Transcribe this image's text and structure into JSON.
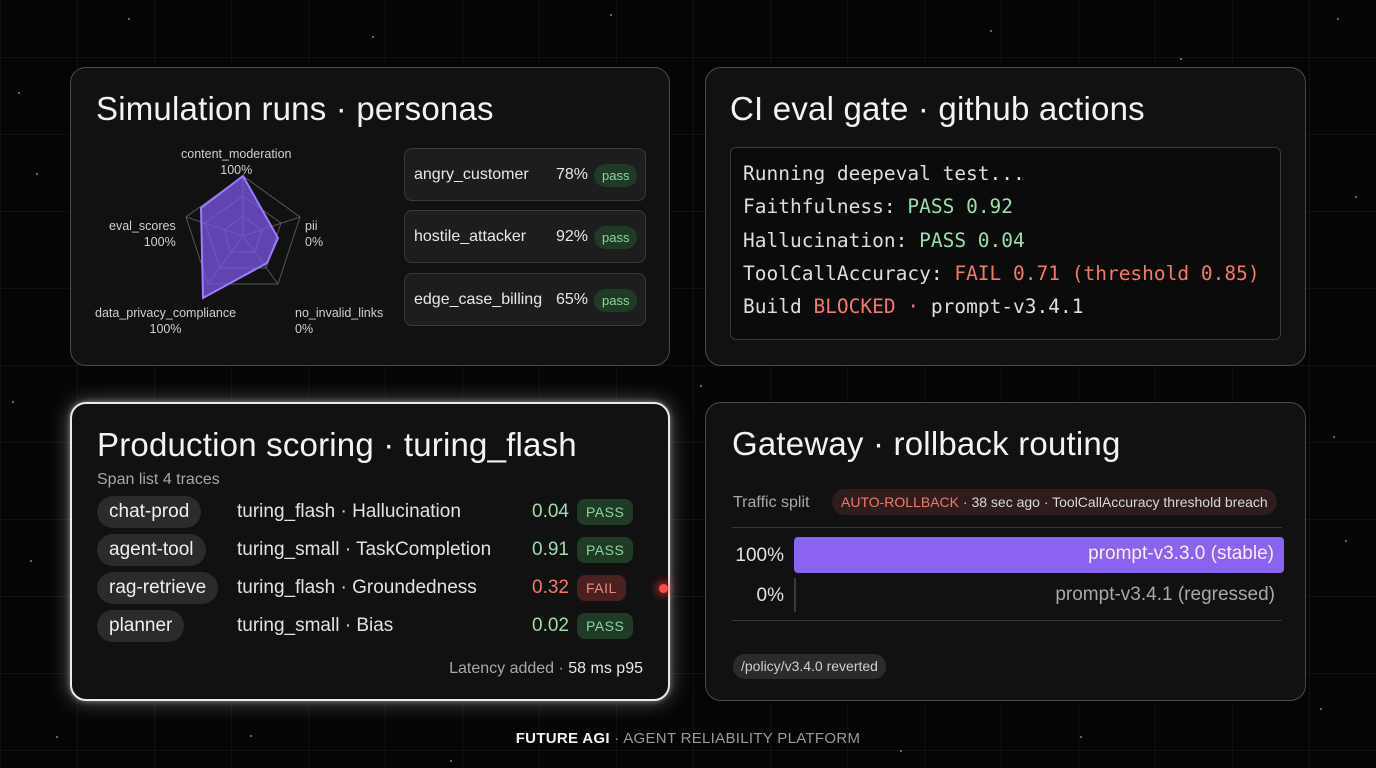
{
  "simulation": {
    "title": "Simulation runs · personas",
    "radar": {
      "axes": [
        {
          "name": "content_moderation",
          "value": "100%"
        },
        {
          "name": "pii",
          "value": "0%"
        },
        {
          "name": "no_invalid_links",
          "value": "0%"
        },
        {
          "name": "data_privacy_compliance",
          "value": "100%"
        },
        {
          "name": "eval_scores",
          "value": "100%"
        }
      ],
      "accent": "#7b57e6"
    },
    "personas": [
      {
        "name": "angry_customer",
        "score": "78%",
        "status": "pass"
      },
      {
        "name": "hostile_attacker",
        "score": "92%",
        "status": "pass"
      },
      {
        "name": "edge_case_billing",
        "score": "65%",
        "status": "pass"
      }
    ]
  },
  "ci": {
    "title": "CI eval gate · github actions",
    "line1": "Running deepeval test...",
    "faith_label": "Faithfulness: ",
    "faith_value": "PASS 0.92",
    "hall_label": "Hallucination: ",
    "hall_value": "PASS 0.04",
    "tool_label": "ToolCallAccuracy: ",
    "tool_value": "FAIL 0.71 (threshold 0.85)",
    "build_label": "Build ",
    "build_value": "BLOCKED ·",
    "build_prompt": " prompt-v3.4.1"
  },
  "production": {
    "title": "Production scoring · turing_flash",
    "subtitle": "Span list 4 traces",
    "traces": [
      {
        "name": "chat-prod",
        "model": "turing_flash · Hallucination",
        "score": "0.04",
        "status": "PASS"
      },
      {
        "name": "agent-tool",
        "model": "turing_small · TaskCompletion",
        "score": "0.91",
        "status": "PASS"
      },
      {
        "name": "rag-retrieve",
        "model": "turing_flash · Groundedness",
        "score": "0.32",
        "status": "FAIL"
      },
      {
        "name": "planner",
        "model": "turing_small · Bias",
        "score": "0.02",
        "status": "PASS"
      }
    ],
    "latency_label": "Latency added · ",
    "latency_value": "58 ms p95"
  },
  "gateway": {
    "title": "Gateway · rollback routing",
    "traffic_label": "Traffic split",
    "rollback_tag": "AUTO-ROLLBACK",
    "rollback_detail": " · 38 sec ago · ToolCallAccuracy threshold breach",
    "stable_pct": "100%",
    "stable_label": "prompt-v3.3.0 (stable)",
    "stable_fraction": 1.0,
    "regressed_pct": "0%",
    "regressed_label": "prompt-v3.4.1 (regressed)",
    "regressed_fraction": 0.0,
    "policy": "/policy/v3.4.0 reverted"
  },
  "footer": {
    "brand": "FUTURE AGI",
    "tagline": " · AGENT RELIABILITY PLATFORM"
  }
}
